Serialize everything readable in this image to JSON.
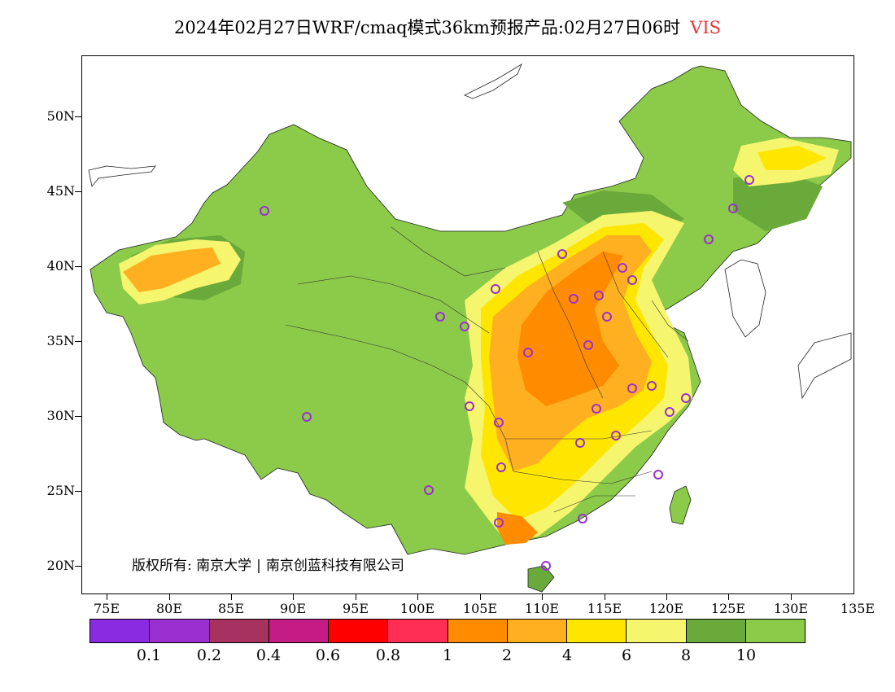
{
  "title": {
    "main": "2024年02月27日WRF/cmaq模式36km预报产品:02月27日06时",
    "variable": "VIS"
  },
  "axes": {
    "y_ticks": [
      "50N",
      "45N",
      "40N",
      "35N",
      "30N",
      "25N",
      "20N"
    ],
    "x_ticks": [
      "75E",
      "80E",
      "85E",
      "90E",
      "95E",
      "100E",
      "105E",
      "110E",
      "115E",
      "120E",
      "125E",
      "130E",
      "135E"
    ]
  },
  "copyright": {
    "label": "版权所有:",
    "org1": "南京大学",
    "org2": "南京创蓝科技有限公司"
  },
  "legend": {
    "colors": [
      "#8a2be2",
      "#9b30d0",
      "#a8325f",
      "#c41b84",
      "#ff0000",
      "#ff2e55",
      "#ff8c00",
      "#ffb020",
      "#ffe600",
      "#f5f56e",
      "#6aaa3a",
      "#8cca4a"
    ],
    "labels": [
      "0.1",
      "0.2",
      "0.4",
      "0.6",
      "0.8",
      "1",
      "2",
      "4",
      "6",
      "8",
      "10"
    ]
  },
  "colors": {
    "land_base": "#8cca4a",
    "land_dark": "#6aaa3a",
    "station_marker": "#9b30d0",
    "title_variable": "#e8363a"
  }
}
